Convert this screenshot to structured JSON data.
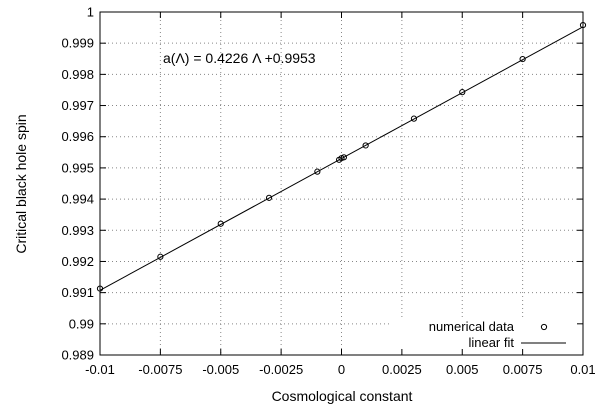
{
  "chart_data": {
    "type": "scatter",
    "title": "",
    "xlabel": "Cosmological constant",
    "ylabel": "Critical black hole spin",
    "xlim": [
      -0.01,
      0.01
    ],
    "ylim": [
      0.989,
      1.0
    ],
    "grid": true,
    "grid_style": "dotted",
    "x_ticks": [
      -0.01,
      -0.0075,
      -0.005,
      -0.0025,
      0,
      0.0025,
      0.005,
      0.0075,
      0.01
    ],
    "x_tick_labels": [
      "-0.01",
      "-0.0075",
      "-0.005",
      "-0.0025",
      "0",
      "0.0025",
      "0.005",
      "0.0075",
      "0.01"
    ],
    "y_ticks": [
      0.989,
      0.99,
      0.991,
      0.992,
      0.993,
      0.994,
      0.995,
      0.996,
      0.997,
      0.998,
      0.999,
      1.0
    ],
    "y_tick_labels": [
      "0.989",
      "0.99",
      "0.991",
      "0.992",
      "0.993",
      "0.994",
      "0.995",
      "0.996",
      "0.997",
      "0.998",
      "0.999",
      "1"
    ],
    "annotation": "a(Λ) = 0.4226 Λ +0.9953",
    "legend_position": "bottom-right",
    "series": [
      {
        "name": "numerical data",
        "marker": "open-circle",
        "x": [
          -0.01,
          -0.0075,
          -0.005,
          -0.003,
          -0.001,
          -0.0001,
          0.0,
          0.0001,
          0.001,
          0.003,
          0.005,
          0.0075,
          0.01
        ],
        "y": [
          0.99113,
          0.99215,
          0.99321,
          0.99404,
          0.99488,
          0.99526,
          0.99531,
          0.99534,
          0.99572,
          0.99658,
          0.99743,
          0.99849,
          0.99958
        ]
      },
      {
        "name": "linear fit",
        "style": "line",
        "slope": 0.4226,
        "intercept": 0.9953,
        "x": [
          -0.01,
          0.01
        ],
        "y": [
          0.991074,
          0.999526
        ]
      }
    ]
  }
}
